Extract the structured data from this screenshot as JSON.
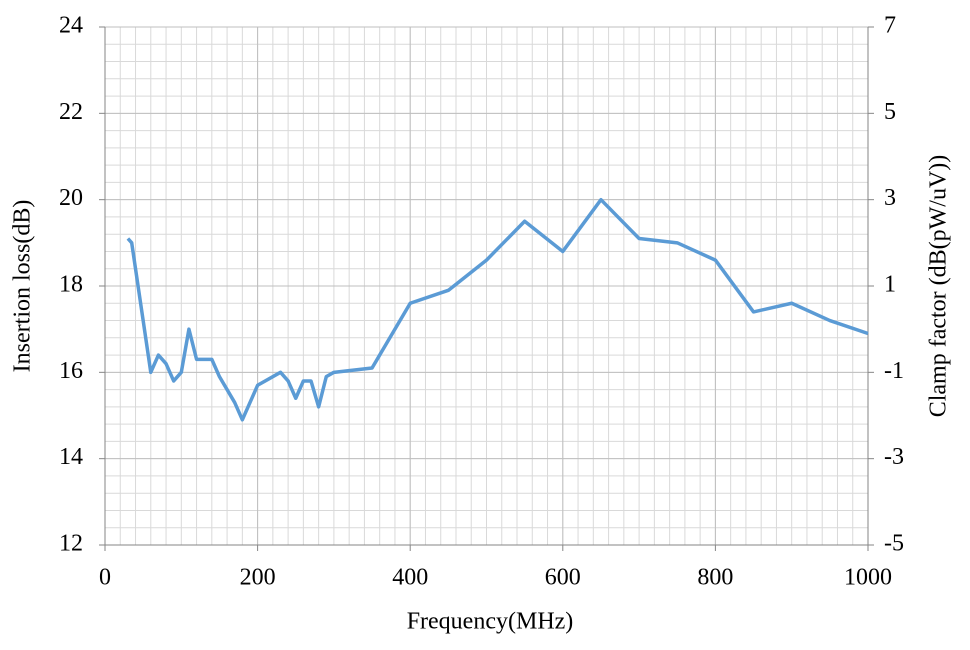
{
  "chart_data": {
    "type": "line",
    "x_label": "Frequency(MHz)",
    "y_label": "Insertion loss(dB)",
    "y2_label": "Clamp factor (dB(pW/uV))",
    "xlim": [
      0,
      1000
    ],
    "xticks": [
      0,
      200,
      400,
      600,
      800,
      1000
    ],
    "ylim": [
      12,
      24
    ],
    "yticks": [
      12,
      14,
      16,
      18,
      20,
      22,
      24
    ],
    "y2lim": [
      -5,
      7
    ],
    "y2ticks": [
      -5,
      -3,
      -1,
      1,
      3,
      5,
      7
    ],
    "grid": true,
    "minor_grid": {
      "x": 20,
      "y": 0.4
    },
    "series": [
      {
        "color": "#5b9bd5",
        "x": [
          30,
          35,
          50,
          60,
          70,
          80,
          90,
          100,
          110,
          120,
          140,
          150,
          170,
          180,
          200,
          230,
          240,
          250,
          260,
          270,
          280,
          290,
          300,
          350,
          400,
          450,
          500,
          550,
          600,
          650,
          700,
          750,
          800,
          850,
          900,
          950,
          1000
        ],
        "values": [
          19.1,
          19.0,
          17.2,
          16.0,
          16.4,
          16.2,
          15.8,
          16.0,
          17.0,
          16.3,
          16.3,
          15.9,
          15.3,
          14.9,
          15.7,
          16.0,
          15.8,
          15.4,
          15.8,
          15.8,
          15.2,
          15.9,
          16.0,
          16.1,
          17.6,
          17.9,
          18.6,
          19.5,
          18.8,
          20.0,
          19.1,
          19.0,
          18.6,
          17.4,
          17.6,
          17.2,
          16.9
        ]
      }
    ]
  }
}
